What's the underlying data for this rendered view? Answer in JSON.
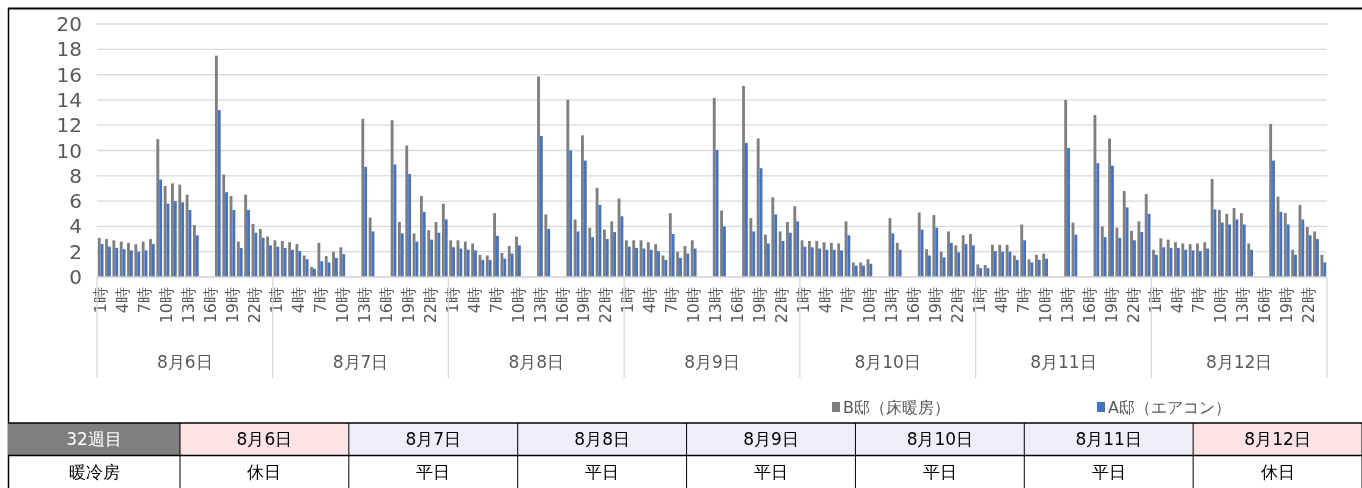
{
  "chart_data": {
    "type": "bar",
    "categories": [
      "1時",
      null,
      null,
      "4時",
      null,
      null,
      "7時",
      null,
      null,
      "10時",
      null,
      null,
      "13時",
      null,
      null,
      "16時",
      null,
      null,
      "19時",
      null,
      null,
      "22時",
      null,
      null,
      "1時",
      null,
      null,
      "4時",
      null,
      null,
      "7時",
      null,
      null,
      "10時",
      null,
      null,
      "13時",
      null,
      null,
      "16時",
      null,
      null,
      "19時",
      null,
      null,
      "22時",
      null,
      null,
      "1時",
      null,
      null,
      "4時",
      null,
      null,
      "7時",
      null,
      null,
      "10時",
      null,
      null,
      "13時",
      null,
      null,
      "16時",
      null,
      null,
      "19時",
      null,
      null,
      "22時",
      null,
      null,
      "1時",
      null,
      null,
      "4時",
      null,
      null,
      "7時",
      null,
      null,
      "10時",
      null,
      null,
      "13時",
      null,
      null,
      "16時",
      null,
      null,
      "19時",
      null,
      null,
      "22時",
      null,
      null,
      "1時",
      null,
      null,
      "4時",
      null,
      null,
      "7時",
      null,
      null,
      "10時",
      null,
      null,
      "13時",
      null,
      null,
      "16時",
      null,
      null,
      "19時",
      null,
      null,
      "22時",
      null,
      null,
      "1時",
      null,
      null,
      "4時",
      null,
      null,
      "7時",
      null,
      null,
      "10時",
      null,
      null,
      "13時",
      null,
      null,
      "16時",
      null,
      null,
      "19時",
      null,
      null,
      "22時",
      null,
      null,
      "1時",
      null,
      null,
      "4時",
      null,
      null,
      "7時",
      null,
      null,
      "10時",
      null,
      null,
      "13時",
      null,
      null,
      "16時",
      null,
      null,
      "19時",
      null,
      null,
      "22時",
      null,
      null
    ],
    "series": [
      {
        "name": "B邸（床暖房）",
        "color": "#7f7f7f",
        "values": [
          3.1,
          3.0,
          2.9,
          2.8,
          2.7,
          2.6,
          2.8,
          3.0,
          10.9,
          7.2,
          7.4,
          7.3,
          6.5,
          4.1,
          null,
          null,
          17.5,
          8.1,
          6.4,
          2.8,
          6.5,
          4.2,
          3.8,
          3.2,
          2.9,
          2.85,
          2.75,
          2.6,
          1.7,
          0.8,
          2.7,
          1.65,
          2.0,
          2.35,
          null,
          null,
          12.5,
          4.7,
          null,
          null,
          12.4,
          4.35,
          10.4,
          3.45,
          6.4,
          3.7,
          4.35,
          5.8,
          2.9,
          2.9,
          2.8,
          2.65,
          1.75,
          1.7,
          5.05,
          1.9,
          2.45,
          3.2,
          null,
          null,
          15.85,
          4.95,
          null,
          null,
          14.0,
          4.55,
          11.2,
          3.9,
          7.05,
          3.75,
          4.4,
          6.2,
          2.9,
          2.9,
          2.9,
          2.75,
          2.6,
          1.7,
          5.05,
          2.0,
          2.45,
          2.9,
          null,
          null,
          14.15,
          5.25,
          null,
          null,
          15.1,
          4.65,
          10.95,
          3.35,
          6.3,
          3.6,
          4.35,
          5.6,
          2.9,
          2.85,
          2.85,
          2.75,
          2.7,
          2.65,
          4.4,
          1.15,
          1.15,
          1.4,
          null,
          null,
          4.65,
          2.7,
          null,
          null,
          5.1,
          2.2,
          4.9,
          2.0,
          3.6,
          2.5,
          3.3,
          3.4,
          1.0,
          0.95,
          2.55,
          2.55,
          2.55,
          1.7,
          4.15,
          1.4,
          1.75,
          1.85,
          null,
          null,
          14.0,
          4.3,
          null,
          null,
          12.8,
          4.0,
          10.95,
          3.9,
          6.8,
          3.65,
          4.4,
          6.55,
          2.15,
          3.05,
          2.95,
          2.75,
          2.65,
          2.6,
          2.65,
          2.75,
          7.75,
          5.3,
          5.0,
          5.45,
          5.05,
          2.65,
          null,
          null,
          12.1,
          6.35,
          5.05,
          2.15,
          5.7,
          3.95,
          3.6,
          1.75
        ]
      },
      {
        "name": "A邸（エアコン）",
        "color": "#4472c4",
        "values": [
          2.6,
          2.4,
          2.3,
          2.2,
          2.1,
          2.0,
          2.1,
          2.6,
          7.7,
          5.8,
          6.0,
          5.9,
          5.3,
          3.3,
          null,
          null,
          13.2,
          6.7,
          5.3,
          2.3,
          5.3,
          3.5,
          3.1,
          2.5,
          2.4,
          2.3,
          2.15,
          2.05,
          1.4,
          0.65,
          1.25,
          1.15,
          1.5,
          1.8,
          null,
          null,
          8.7,
          3.6,
          null,
          null,
          8.9,
          3.45,
          8.15,
          2.8,
          5.15,
          2.95,
          3.5,
          4.55,
          2.35,
          2.25,
          2.15,
          2.1,
          1.35,
          1.35,
          3.25,
          1.45,
          1.85,
          2.5,
          null,
          null,
          11.15,
          3.8,
          null,
          null,
          10.0,
          3.6,
          9.2,
          3.15,
          5.7,
          3.0,
          3.55,
          4.8,
          2.4,
          2.3,
          2.25,
          2.15,
          2.05,
          1.35,
          3.4,
          1.5,
          1.85,
          2.25,
          null,
          null,
          10.05,
          4.0,
          null,
          null,
          10.6,
          3.6,
          8.6,
          2.65,
          4.95,
          2.85,
          3.5,
          4.4,
          2.4,
          2.35,
          2.25,
          2.15,
          2.15,
          2.1,
          3.3,
          0.9,
          0.9,
          1.05,
          null,
          null,
          3.45,
          2.15,
          null,
          null,
          3.75,
          1.7,
          3.9,
          1.55,
          2.7,
          1.95,
          2.6,
          2.5,
          0.7,
          0.7,
          2.05,
          2.0,
          2.0,
          1.35,
          2.9,
          1.15,
          1.35,
          1.45,
          null,
          null,
          10.2,
          3.35,
          null,
          null,
          9.0,
          3.15,
          8.8,
          3.1,
          5.5,
          2.9,
          3.55,
          5.0,
          1.75,
          2.35,
          2.3,
          2.3,
          2.15,
          2.1,
          2.05,
          2.25,
          5.35,
          4.3,
          4.15,
          4.55,
          4.15,
          2.15,
          null,
          null,
          9.2,
          5.15,
          4.15,
          1.75,
          4.55,
          3.3,
          3.0,
          1.15
        ]
      }
    ],
    "ylim": [
      0,
      20
    ],
    "yticks": [
      0,
      2,
      4,
      6,
      8,
      10,
      12,
      14,
      16,
      18,
      20
    ],
    "grid": "y",
    "legend": "bottom",
    "annotations": [
      "8月6日",
      "8月7日",
      "8月8日",
      "8月9日",
      "8月10日",
      "8月11日",
      "8月12日",
      "32週目",
      "暖冷房",
      "休日",
      "平日",
      "平日",
      "平日",
      "平日",
      "平日",
      "休日"
    ]
  }
}
